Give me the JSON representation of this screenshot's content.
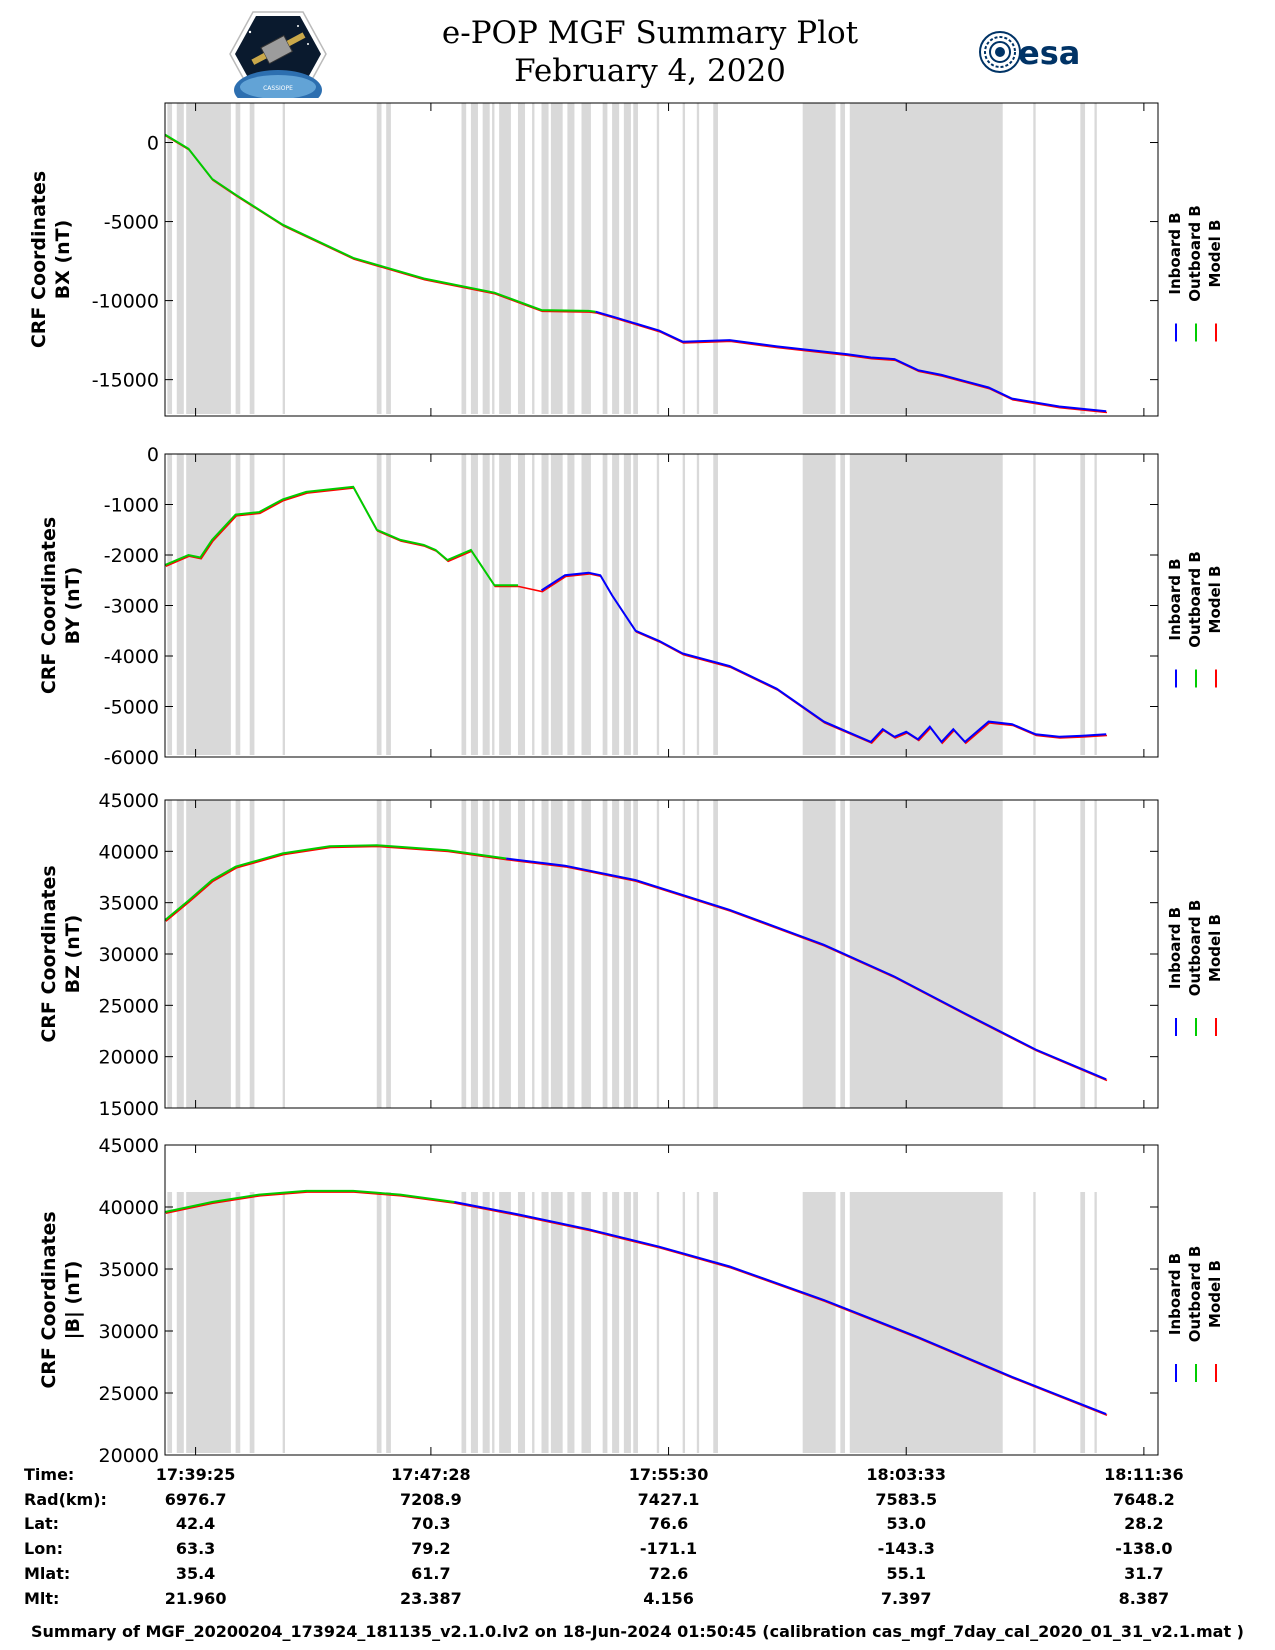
{
  "header": {
    "title_line1": "e-POP MGF Summary Plot",
    "title_line2": "February 4, 2020",
    "left_logo_caption": "CASSIOPE",
    "right_logo_text": "esa"
  },
  "legend": {
    "entries": [
      {
        "name": "Inboard B",
        "color": "#0000ff"
      },
      {
        "name": "Outboard B",
        "color": "#00cc00"
      },
      {
        "name": "Model B",
        "color": "#ff0000"
      }
    ]
  },
  "colors": {
    "inboard": "#0000ff",
    "outboard": "#00cc00",
    "model": "#ff0000",
    "gap_band": "#d9d9d9"
  },
  "chart_data": [
    {
      "type": "line",
      "ylabel_line1": "CRF Coordinates",
      "ylabel_line2": "BX (nT)",
      "ylim": [
        -17300,
        2500
      ],
      "yticks": [
        0,
        -5000,
        -10000,
        -15000
      ],
      "ytick_labels": [
        "0",
        "-5000",
        "-10000",
        "-15000"
      ],
      "green_until_min": 18.3,
      "x": [
        0,
        1,
        2,
        3,
        5,
        8,
        11,
        14,
        16,
        18,
        18.3,
        19,
        21,
        22,
        24,
        26,
        29,
        30,
        31,
        32,
        33,
        34,
        35,
        36,
        38,
        40
      ],
      "y": [
        500,
        -400,
        -2300,
        -3300,
        -5200,
        -7300,
        -8600,
        -9500,
        -10600,
        -10650,
        -10700,
        -11000,
        -11900,
        -12600,
        -12500,
        -12900,
        -13400,
        -13600,
        -13700,
        -14400,
        -14700,
        -15100,
        -15500,
        -16200,
        -16700,
        -17000
      ]
    },
    {
      "type": "line",
      "ylabel_line1": "CRF Coordinates",
      "ylabel_line2": "BY (nT)",
      "ylim": [
        -6000,
        0
      ],
      "yticks": [
        0,
        -1000,
        -2000,
        -3000,
        -4000,
        -5000,
        -6000
      ],
      "ytick_labels": [
        "0",
        "-1000",
        "-2000",
        "-3000",
        "-4000",
        "-5000",
        "-6000"
      ],
      "green_until_min": 15.5,
      "x": [
        0,
        1,
        1.5,
        2,
        3,
        4,
        5,
        6,
        8,
        9,
        10,
        11,
        11.5,
        12,
        13,
        14,
        15,
        16,
        17,
        18,
        18.5,
        19,
        20,
        21,
        22,
        24,
        26,
        28,
        29,
        30,
        30.5,
        31,
        31.5,
        32,
        32.5,
        33,
        33.5,
        34,
        35,
        36,
        37,
        38,
        39,
        40
      ],
      "y": [
        -2200,
        -2000,
        -2050,
        -1700,
        -1200,
        -1150,
        -900,
        -750,
        -650,
        -1500,
        -1700,
        -1800,
        -1900,
        -2100,
        -1900,
        -2600,
        -2600,
        -2700,
        -2400,
        -2350,
        -2400,
        -2800,
        -3500,
        -3700,
        -3950,
        -4200,
        -4650,
        -5300,
        -5500,
        -5700,
        -5450,
        -5600,
        -5500,
        -5650,
        -5400,
        -5700,
        -5450,
        -5700,
        -5300,
        -5350,
        -5550,
        -5600,
        -5580,
        -5550
      ]
    },
    {
      "type": "line",
      "ylabel_line1": "CRF Coordinates",
      "ylabel_line2": "BZ (nT)",
      "ylim": [
        15000,
        45000
      ],
      "yticks": [
        45000,
        40000,
        35000,
        30000,
        25000,
        20000,
        15000
      ],
      "ytick_labels": [
        "45000",
        "40000",
        "35000",
        "30000",
        "25000",
        "20000",
        "15000"
      ],
      "green_until_min": 14.5,
      "x": [
        0,
        1,
        2,
        3,
        5,
        7,
        9,
        12,
        14.5,
        17,
        20,
        24,
        28,
        31,
        34,
        37,
        40
      ],
      "y": [
        33300,
        35200,
        37200,
        38500,
        39800,
        40500,
        40600,
        40100,
        39300,
        38600,
        37200,
        34300,
        30900,
        27800,
        24200,
        20700,
        17800
      ]
    },
    {
      "type": "line",
      "ylabel_line1": "CRF Coordinates",
      "ylabel_line2": "|B| (nT)",
      "ylim": [
        20000,
        45000
      ],
      "yticks": [
        45000,
        40000,
        35000,
        30000,
        25000,
        20000
      ],
      "ytick_labels": [
        "45000",
        "40000",
        "35000",
        "30000",
        "25000",
        "20000"
      ],
      "green_until_min": 12.3,
      "x": [
        0,
        2,
        4,
        6,
        8,
        10,
        12.3,
        15,
        18,
        21,
        24,
        28,
        32,
        36,
        40
      ],
      "y": [
        39600,
        40400,
        41000,
        41300,
        41300,
        41000,
        40400,
        39400,
        38200,
        36800,
        35200,
        32500,
        29500,
        26300,
        23300
      ]
    }
  ],
  "gap_bands_min": [
    [
      0.1,
      0.3
    ],
    [
      0.5,
      0.8
    ],
    [
      0.9,
      2.8
    ],
    [
      3.0,
      3.2
    ],
    [
      3.6,
      3.8
    ],
    [
      5.0,
      5.1
    ],
    [
      9.0,
      9.2
    ],
    [
      9.4,
      9.6
    ],
    [
      12.6,
      12.8
    ],
    [
      13.0,
      13.3
    ],
    [
      13.5,
      13.8
    ],
    [
      13.9,
      14.0
    ],
    [
      14.2,
      14.7
    ],
    [
      15.0,
      15.3
    ],
    [
      15.6,
      15.7
    ],
    [
      16.0,
      16.3
    ],
    [
      16.4,
      16.9
    ],
    [
      17.1,
      17.4
    ],
    [
      17.7,
      18.1
    ],
    [
      18.6,
      18.8
    ],
    [
      19.0,
      19.3
    ],
    [
      19.5,
      19.8
    ],
    [
      19.9,
      20.1
    ],
    [
      20.9,
      21.0
    ],
    [
      22.0,
      22.1
    ],
    [
      22.6,
      22.7
    ],
    [
      23.3,
      23.5
    ],
    [
      27.1,
      28.5
    ],
    [
      28.7,
      28.9
    ],
    [
      29.1,
      35.6
    ],
    [
      36.9,
      37.0
    ],
    [
      38.9,
      39.1
    ],
    [
      39.5,
      39.6
    ]
  ],
  "ephemeris": {
    "tick_offsets_min": [
      1.3,
      11.3,
      21.4,
      31.5,
      41.6
    ],
    "rows": [
      {
        "label": "Time:",
        "values": [
          "17:39:25",
          "17:47:28",
          "17:55:30",
          "18:03:33",
          "18:11:36"
        ]
      },
      {
        "label": "Rad(km):",
        "values": [
          "6976.7",
          "7208.9",
          "7427.1",
          "7583.5",
          "7648.2"
        ]
      },
      {
        "label": "Lat:",
        "values": [
          "42.4",
          "70.3",
          "76.6",
          "53.0",
          "28.2"
        ]
      },
      {
        "label": "Lon:",
        "values": [
          "63.3",
          "79.2",
          "-171.1",
          "-143.3",
          "-138.0"
        ]
      },
      {
        "label": "Mlat:",
        "values": [
          "35.4",
          "61.7",
          "72.6",
          "55.1",
          "31.7"
        ]
      },
      {
        "label": "Mlt:",
        "values": [
          "21.960",
          "23.387",
          "4.156",
          "7.397",
          "8.387"
        ]
      }
    ]
  },
  "footer": "Summary of MGF_20200204_173924_181135_v2.1.0.lv2 on 18-Jun-2024 01:50:45 (calibration cas_mgf_7day_cal_2020_01_31_v2.1.mat )"
}
